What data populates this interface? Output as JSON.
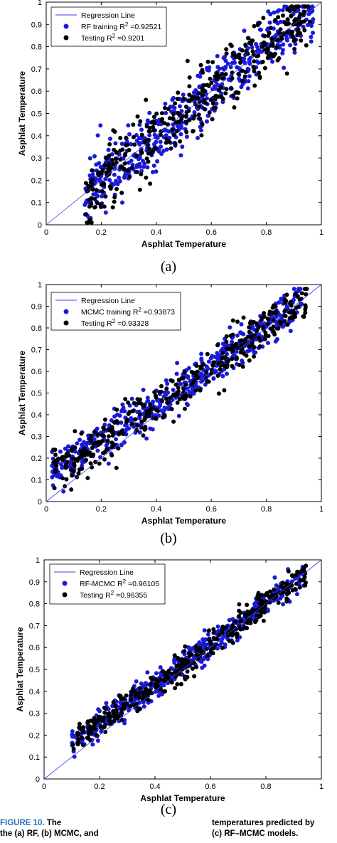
{
  "chart_data": [
    {
      "type": "scatter",
      "panel_label": "(a)",
      "xlabel": "Asphlat Temperature",
      "ylabel": "Asphlat Temperature",
      "xlim": [
        0,
        1
      ],
      "ylim": [
        0,
        1
      ],
      "xticks": [
        "0",
        "0.2",
        "0.4",
        "0.6",
        "0.8",
        "1"
      ],
      "yticks": [
        "0",
        "0.1",
        "0.2",
        "0.3",
        "0.4",
        "0.5",
        "0.6",
        "0.7",
        "0.8",
        "0.9",
        "1"
      ],
      "grid": false,
      "legend_position": "top-left",
      "legend": [
        {
          "kind": "line",
          "text": "Regression Line",
          "color": "#3a3aff"
        },
        {
          "kind": "dot",
          "text": "RF training R",
          "sup": "2",
          "value": " =0.92521",
          "color": "#1a1ad6"
        },
        {
          "kind": "dot",
          "text": "Testing R",
          "sup": "2",
          "value": " =0.9201",
          "color": "#000000"
        }
      ],
      "regression_line": [
        [
          0,
          0
        ],
        [
          1,
          1
        ]
      ],
      "series": [
        {
          "name": "RF training",
          "color": "#1a1ad6",
          "x_range": [
            0.14,
            0.97
          ],
          "n": 520,
          "spread": 0.07,
          "bias": 0.0,
          "seed": 11
        },
        {
          "name": "Testing",
          "color": "#000000",
          "x_range": [
            0.14,
            0.97
          ],
          "n": 360,
          "spread": 0.075,
          "bias": 0.0,
          "seed": 29
        }
      ]
    },
    {
      "type": "scatter",
      "panel_label": "(b)",
      "xlabel": "Asphlat Temperature",
      "ylabel": "Asphlat Temperature",
      "xlim": [
        0,
        1
      ],
      "ylim": [
        0,
        1
      ],
      "xticks": [
        "0",
        "0.2",
        "0.4",
        "0.6",
        "0.8",
        "1"
      ],
      "yticks": [
        "0",
        "0.1",
        "0.2",
        "0.3",
        "0.4",
        "0.5",
        "0.6",
        "0.7",
        "0.8",
        "0.9",
        "1"
      ],
      "grid": false,
      "legend_position": "top-left",
      "legend": [
        {
          "kind": "line",
          "text": "Regression Line",
          "color": "#3a3aff"
        },
        {
          "kind": "dot",
          "text": "MCMC training R",
          "sup": "2",
          "value": " =0.93873",
          "color": "#1a1ad6"
        },
        {
          "kind": "dot",
          "text": "Testing R",
          "sup": "2",
          "value": " =0.93328",
          "color": "#000000"
        }
      ],
      "regression_line": [
        [
          0,
          0
        ],
        [
          1,
          1
        ]
      ],
      "series": [
        {
          "name": "MCMC training",
          "color": "#1a1ad6",
          "x_range": [
            0.02,
            0.93
          ],
          "n": 520,
          "spread": 0.045,
          "bias": 0.06,
          "seed": 47
        },
        {
          "name": "Testing",
          "color": "#000000",
          "x_range": [
            0.02,
            0.95
          ],
          "n": 360,
          "spread": 0.05,
          "bias": 0.06,
          "seed": 83
        }
      ]
    },
    {
      "type": "scatter",
      "panel_label": "(c)",
      "xlabel": "Asphlat Temperature",
      "ylabel": "Asphlat Temperature",
      "xlim": [
        0,
        1
      ],
      "ylim": [
        0,
        1
      ],
      "xticks": [
        "0",
        "0.2",
        "0.4",
        "0.6",
        "0.8",
        "1"
      ],
      "yticks": [
        "0",
        "0.1",
        "0.2",
        "0.3",
        "0.4",
        "0.5",
        "0.6",
        "0.7",
        "0.8",
        "0.9",
        "1"
      ],
      "grid": false,
      "legend_position": "top-left",
      "legend": [
        {
          "kind": "line",
          "text": "Regression Line",
          "color": "#3a3aff"
        },
        {
          "kind": "dot",
          "text": "RF-MCMC R",
          "sup": "2",
          "value": " =0.96105",
          "color": "#1a1ad6"
        },
        {
          "kind": "dot",
          "text": "Testing R",
          "sup": "2",
          "value": " =0.96355",
          "color": "#000000"
        }
      ],
      "regression_line": [
        [
          0,
          0
        ],
        [
          1,
          1
        ]
      ],
      "series": [
        {
          "name": "RF-MCMC",
          "color": "#1a1ad6",
          "x_range": [
            0.1,
            0.94
          ],
          "n": 520,
          "spread": 0.03,
          "bias": 0.04,
          "seed": 101
        },
        {
          "name": "Testing",
          "color": "#000000",
          "x_range": [
            0.1,
            0.95
          ],
          "n": 360,
          "spread": 0.03,
          "bias": 0.04,
          "seed": 131
        }
      ]
    }
  ],
  "caption": {
    "figure_label": "FIGURE 10.",
    "left_line1": " The",
    "left_line2": "the (a) RF, (b) MCMC, and",
    "right_line1": "temperatures predicted by",
    "right_line2": "(c) RF–MCMC models."
  }
}
